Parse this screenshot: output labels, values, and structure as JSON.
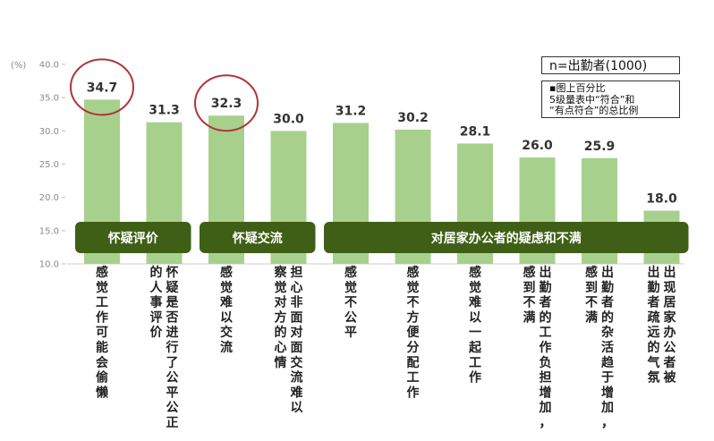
{
  "chart_data": {
    "type": "bar",
    "y_unit": "(%)",
    "ylim": [
      10.0,
      40.0
    ],
    "y_ticks": [
      "10.0",
      "15.0",
      "20.0",
      "25.0",
      "30.0",
      "35.0",
      "40.0"
    ],
    "series": [
      {
        "values": [
          34.7,
          31.3,
          32.3,
          30.0,
          31.2,
          30.2,
          28.1,
          26.0,
          25.9,
          18.0
        ],
        "labels": [
          "34.7",
          "31.3",
          "32.3",
          "30.0",
          "31.2",
          "30.2",
          "28.1",
          "26.0",
          "25.9",
          "18.0"
        ]
      }
    ],
    "categories": [
      "感觉工作可能会偷懒",
      "怀疑是否进行了公平公正的人事评价",
      "感觉难以交流",
      "担心非面对面交流难以察觉对方的心情",
      "感觉不公平",
      "感觉不方便分配工作",
      "感觉难以一起工作",
      "出勤者的工作负担增加，感到不满",
      "出勤者的杂活趋于增加，感到不满",
      "出现居家办公者被出勤者疏远的气氛"
    ],
    "category_columns": [
      [
        "感觉工作可能会偷懒"
      ],
      [
        "怀疑是否进行了公平公正",
        "的人事评价"
      ],
      [
        "感觉难以交流"
      ],
      [
        "担心非面对面交流难以",
        "察觉对方的心情"
      ],
      [
        "感觉不公平"
      ],
      [
        "感觉不方便分配工作"
      ],
      [
        "感觉难以一起工作"
      ],
      [
        "出勤者的工作负担增加，",
        "感到不满"
      ],
      [
        "出勤者的杂活趋于增加，",
        "感到不满"
      ],
      [
        "出现居家办公者被",
        "出勤者疏远的气氛"
      ]
    ],
    "groups": [
      {
        "label": "怀疑评价",
        "from": 0,
        "to": 1
      },
      {
        "label": "怀疑交流",
        "from": 2,
        "to": 3
      },
      {
        "label": "对居家办公者的疑虑和不满",
        "from": 4,
        "to": 9
      }
    ],
    "highlighted": [
      0,
      2
    ],
    "grid": false,
    "colors": {
      "bar": "#a8d08d",
      "group_band": "#3f5f16",
      "group_text": "#ffffff",
      "circle": "#b0333a",
      "axis_text": "#8a8a8a",
      "label_text": "#333333"
    }
  },
  "notes": {
    "sample": "n=出勤者(1000)",
    "footnote": [
      "▪图上百分比",
      "5级量表中“符合”和",
      "“有点符合”的总比例"
    ]
  }
}
